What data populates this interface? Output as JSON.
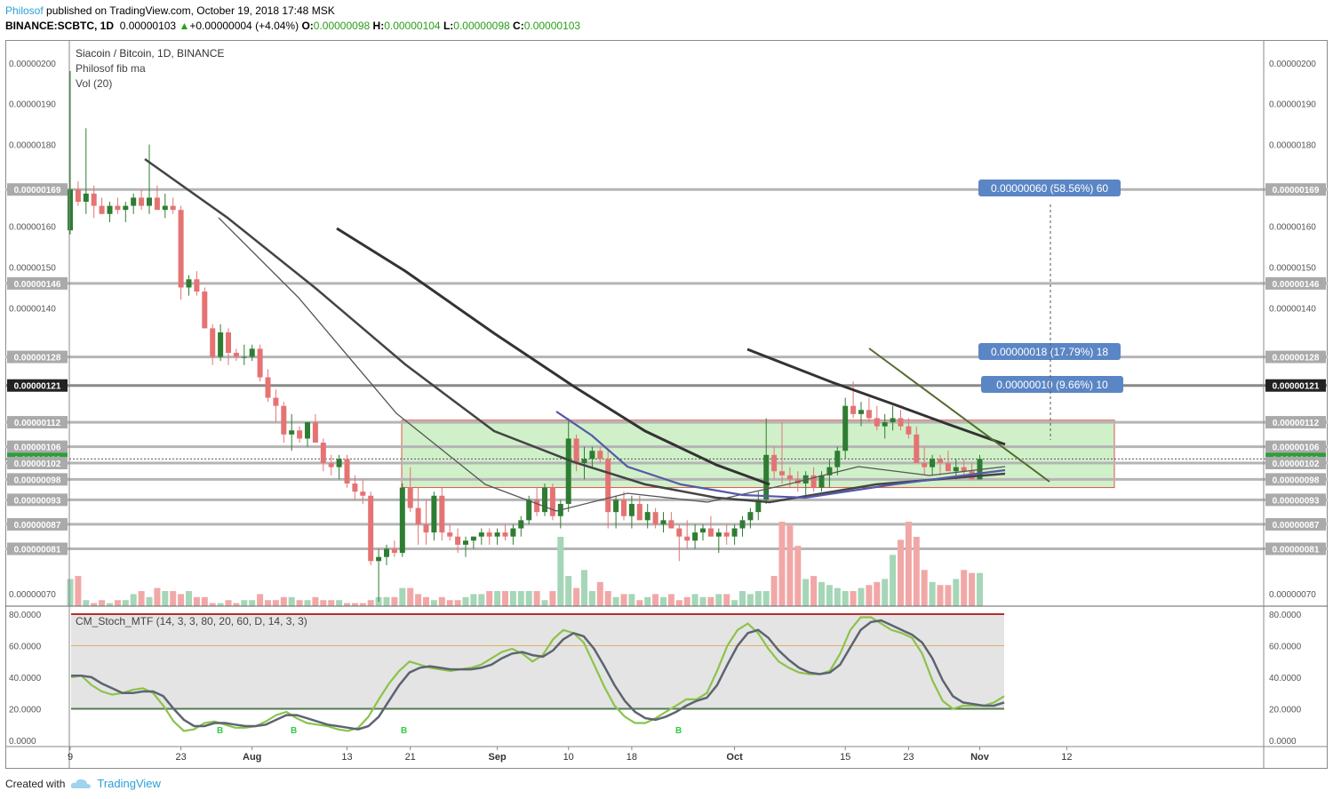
{
  "header": {
    "author": "Philosof",
    "published": "published on TradingView.com, October 19, 2018 17:48 MSK",
    "symbol": "BINANCE:SCBTC, 1D",
    "last": "0.00000103",
    "change_arrow": "▲",
    "change": "+0.00000004 (+4.04%)",
    "o_label": "O:",
    "o": "0.00000098",
    "h_label": "H:",
    "h": "0.00000104",
    "l_label": "L:",
    "l": "0.00000098",
    "c_label": "C:",
    "c": "0.00000103"
  },
  "legend": {
    "title": "Siacoin / Bitcoin, 1D, BINANCE",
    "indicator1": "Philosof fib ma",
    "indicator2": "Vol (20)",
    "oscillator": "CM_Stoch_MTF (14, 3, 3, 80, 20, 60, D, 14, 3, 3)"
  },
  "footer": {
    "created_with": "Created with",
    "brand": "TradingView"
  },
  "colors": {
    "up": "#2e7d32",
    "down": "#e57373",
    "vol_up": "#a5d6b7",
    "vol_down": "#f2a7a7",
    "box": "#c8edc0",
    "box_border": "#d9534f",
    "stoch_k": "#8bc34a",
    "stoch_d": "#5d6470",
    "label_bg": "#5b86c5"
  },
  "chart_data": [
    {
      "type": "candlestick",
      "title": "Siacoin / Bitcoin, 1D, BINANCE",
      "ylim": [
        6.5e-07,
        2.03e-06
      ],
      "price_ticks": [
        "0.00000200",
        "0.00000190",
        "0.00000180",
        "0.00000160",
        "0.00000150",
        "0.00000140",
        "0.00000070"
      ],
      "highlighted_levels": [
        {
          "value": "0.00000169",
          "style": "gray"
        },
        {
          "value": "0.00000146",
          "style": "gray"
        },
        {
          "value": "0.00000128",
          "style": "gray"
        },
        {
          "value": "0.00000121",
          "style": "dark"
        },
        {
          "value": "0.00000112",
          "style": "gray"
        },
        {
          "value": "0.00000106",
          "style": "gray"
        },
        {
          "value": "0.00000103",
          "style": "green"
        },
        {
          "value": "0.00000102",
          "style": "gray"
        },
        {
          "value": "0.00000098",
          "style": "gray"
        },
        {
          "value": "0.00000093",
          "style": "gray"
        },
        {
          "value": "0.00000087",
          "style": "gray"
        },
        {
          "value": "0.00000081",
          "style": "gray"
        }
      ],
      "x_ticks": [
        {
          "label": "9",
          "day": 0
        },
        {
          "label": "23",
          "day": 14
        },
        {
          "label": "Aug",
          "day": 23
        },
        {
          "label": "13",
          "day": 35
        },
        {
          "label": "21",
          "day": 43
        },
        {
          "label": "Sep",
          "day": 54
        },
        {
          "label": "10",
          "day": 63
        },
        {
          "label": "18",
          "day": 71
        },
        {
          "label": "Oct",
          "day": 84
        },
        {
          "label": "15",
          "day": 98
        },
        {
          "label": "23",
          "day": 106
        },
        {
          "label": "Nov",
          "day": 115
        },
        {
          "label": "12",
          "day": 126
        }
      ],
      "candles": [
        [
          1.59,
          1.98,
          1.58,
          1.69
        ],
        [
          1.69,
          1.71,
          1.65,
          1.66
        ],
        [
          1.66,
          1.84,
          1.63,
          1.68
        ],
        [
          1.68,
          1.7,
          1.62,
          1.65
        ],
        [
          1.65,
          1.67,
          1.63,
          1.63
        ],
        [
          1.63,
          1.66,
          1.61,
          1.65
        ],
        [
          1.65,
          1.67,
          1.63,
          1.64
        ],
        [
          1.64,
          1.66,
          1.61,
          1.65
        ],
        [
          1.65,
          1.68,
          1.63,
          1.67
        ],
        [
          1.67,
          1.69,
          1.64,
          1.65
        ],
        [
          1.65,
          1.8,
          1.63,
          1.67
        ],
        [
          1.67,
          1.7,
          1.64,
          1.64
        ],
        [
          1.64,
          1.68,
          1.62,
          1.65
        ],
        [
          1.65,
          1.67,
          1.63,
          1.64
        ],
        [
          1.64,
          1.65,
          1.42,
          1.45
        ],
        [
          1.45,
          1.48,
          1.43,
          1.47
        ],
        [
          1.47,
          1.49,
          1.43,
          1.44
        ],
        [
          1.44,
          1.45,
          1.35,
          1.35
        ],
        [
          1.35,
          1.36,
          1.26,
          1.28
        ],
        [
          1.28,
          1.36,
          1.27,
          1.34
        ],
        [
          1.34,
          1.35,
          1.26,
          1.29
        ],
        [
          1.29,
          1.3,
          1.27,
          1.28
        ],
        [
          1.28,
          1.31,
          1.26,
          1.28
        ],
        [
          1.28,
          1.31,
          1.27,
          1.3
        ],
        [
          1.3,
          1.31,
          1.22,
          1.23
        ],
        [
          1.23,
          1.25,
          1.17,
          1.18
        ],
        [
          1.18,
          1.2,
          1.12,
          1.16
        ],
        [
          1.16,
          1.17,
          1.07,
          1.09
        ],
        [
          1.09,
          1.14,
          1.05,
          1.1
        ],
        [
          1.1,
          1.11,
          1.07,
          1.08
        ],
        [
          1.08,
          1.12,
          1.06,
          1.12
        ],
        [
          1.12,
          1.14,
          1.07,
          1.07
        ],
        [
          1.07,
          1.08,
          1.0,
          1.02
        ],
        [
          1.02,
          1.04,
          0.99,
          1.01
        ],
        [
          1.01,
          1.04,
          0.98,
          1.03
        ],
        [
          1.03,
          1.04,
          0.96,
          0.97
        ],
        [
          0.97,
          0.99,
          0.93,
          0.95
        ],
        [
          0.95,
          0.98,
          0.92,
          0.94
        ],
        [
          0.94,
          0.95,
          0.77,
          0.78
        ],
        [
          0.78,
          0.81,
          0.68,
          0.79
        ],
        [
          0.79,
          0.82,
          0.77,
          0.81
        ],
        [
          0.81,
          0.83,
          0.79,
          0.8
        ],
        [
          0.8,
          0.97,
          0.79,
          0.96
        ],
        [
          0.96,
          1.01,
          0.9,
          0.91
        ],
        [
          0.91,
          0.96,
          0.82,
          0.87
        ],
        [
          0.87,
          0.93,
          0.82,
          0.85
        ],
        [
          0.85,
          0.95,
          0.83,
          0.94
        ],
        [
          0.94,
          0.96,
          0.83,
          0.85
        ],
        [
          0.85,
          0.87,
          0.83,
          0.84
        ],
        [
          0.84,
          0.86,
          0.8,
          0.82
        ],
        [
          0.82,
          0.84,
          0.79,
          0.83
        ],
        [
          0.83,
          0.84,
          0.81,
          0.84
        ],
        [
          0.84,
          0.86,
          0.82,
          0.85
        ],
        [
          0.85,
          0.86,
          0.82,
          0.84
        ],
        [
          0.84,
          0.86,
          0.82,
          0.85
        ],
        [
          0.85,
          0.87,
          0.83,
          0.84
        ],
        [
          0.84,
          0.87,
          0.82,
          0.86
        ],
        [
          0.86,
          0.89,
          0.84,
          0.88
        ],
        [
          0.88,
          0.94,
          0.87,
          0.93
        ],
        [
          0.93,
          0.96,
          0.89,
          0.9
        ],
        [
          0.9,
          0.97,
          0.89,
          0.96
        ],
        [
          0.96,
          0.97,
          0.88,
          0.89
        ],
        [
          0.89,
          0.93,
          0.86,
          0.92
        ],
        [
          0.92,
          1.13,
          0.9,
          1.08
        ],
        [
          1.08,
          1.09,
          1.0,
          1.02
        ],
        [
          1.02,
          1.06,
          0.98,
          1.03
        ],
        [
          1.03,
          1.06,
          1.01,
          1.05
        ],
        [
          1.05,
          1.06,
          1.02,
          1.03
        ],
        [
          1.03,
          1.05,
          0.86,
          0.9
        ],
        [
          0.9,
          0.94,
          0.86,
          0.93
        ],
        [
          0.93,
          0.95,
          0.88,
          0.89
        ],
        [
          0.89,
          0.94,
          0.86,
          0.92
        ],
        [
          0.92,
          0.94,
          0.88,
          0.88
        ],
        [
          0.88,
          0.92,
          0.86,
          0.9
        ],
        [
          0.9,
          0.91,
          0.86,
          0.87
        ],
        [
          0.87,
          0.9,
          0.85,
          0.88
        ],
        [
          0.88,
          0.9,
          0.86,
          0.86
        ],
        [
          0.86,
          0.87,
          0.78,
          0.84
        ],
        [
          0.84,
          0.88,
          0.81,
          0.83
        ],
        [
          0.83,
          0.87,
          0.81,
          0.85
        ],
        [
          0.85,
          0.87,
          0.83,
          0.86
        ],
        [
          0.86,
          0.89,
          0.84,
          0.84
        ],
        [
          0.84,
          0.86,
          0.8,
          0.85
        ],
        [
          0.85,
          0.87,
          0.82,
          0.84
        ],
        [
          0.84,
          0.87,
          0.82,
          0.86
        ],
        [
          0.86,
          0.89,
          0.84,
          0.88
        ],
        [
          0.88,
          0.91,
          0.86,
          0.9
        ],
        [
          0.9,
          0.95,
          0.88,
          0.93
        ],
        [
          0.93,
          1.13,
          0.92,
          1.04
        ],
        [
          1.04,
          1.06,
          0.98,
          1.0
        ],
        [
          1.0,
          1.12,
          0.97,
          0.99
        ],
        [
          0.99,
          1.01,
          0.96,
          0.98
        ],
        [
          0.98,
          1.0,
          0.95,
          0.97
        ],
        [
          0.97,
          1.0,
          0.94,
          0.99
        ],
        [
          0.99,
          1.01,
          0.95,
          0.96
        ],
        [
          0.96,
          1.0,
          0.95,
          0.99
        ],
        [
          0.99,
          1.03,
          0.96,
          1.01
        ],
        [
          1.01,
          1.06,
          0.99,
          1.05
        ],
        [
          1.05,
          1.18,
          1.03,
          1.16
        ],
        [
          1.16,
          1.22,
          1.13,
          1.14
        ],
        [
          1.14,
          1.17,
          1.11,
          1.15
        ],
        [
          1.15,
          1.18,
          1.12,
          1.13
        ],
        [
          1.13,
          1.16,
          1.1,
          1.11
        ],
        [
          1.11,
          1.14,
          1.08,
          1.12
        ],
        [
          1.12,
          1.16,
          1.1,
          1.13
        ],
        [
          1.13,
          1.15,
          1.1,
          1.11
        ],
        [
          1.11,
          1.13,
          1.08,
          1.09
        ],
        [
          1.09,
          1.11,
          1.02,
          1.02
        ],
        [
          1.02,
          1.06,
          0.99,
          1.01
        ],
        [
          1.01,
          1.04,
          0.99,
          1.03
        ],
        [
          1.03,
          1.04,
          0.99,
          1.02
        ],
        [
          1.02,
          1.05,
          1.0,
          1.0
        ],
        [
          1.0,
          1.03,
          0.98,
          1.01
        ],
        [
          1.01,
          1.03,
          0.99,
          1.0
        ],
        [
          1.0,
          1.02,
          0.98,
          0.98
        ],
        [
          0.98,
          1.04,
          0.98,
          1.03
        ]
      ],
      "volume": [
        9,
        10,
        2,
        1,
        2,
        1,
        2,
        2,
        4,
        5,
        3,
        6,
        5,
        5,
        4,
        5,
        3,
        3,
        1,
        1,
        2,
        1,
        2,
        2,
        4,
        2,
        2,
        3,
        3,
        2,
        2,
        3,
        2,
        2,
        2,
        1,
        1,
        1,
        2,
        3,
        3,
        3,
        6,
        6,
        4,
        3,
        2,
        3,
        2,
        2,
        3,
        4,
        4,
        5,
        5,
        5,
        5,
        5,
        5,
        5,
        2,
        5,
        23,
        10,
        6,
        12,
        5,
        8,
        5,
        3,
        4,
        4,
        2,
        3,
        4,
        3,
        4,
        2,
        3,
        4,
        3,
        3,
        4,
        4,
        2,
        5,
        4,
        5,
        5,
        10,
        28,
        27,
        20,
        9,
        10,
        8,
        7,
        6,
        5,
        5,
        6,
        7,
        8,
        9,
        17,
        22,
        28,
        23,
        12,
        8,
        7,
        7,
        9,
        12,
        11,
        11,
        8,
        8,
        7,
        6,
        5
      ]
    },
    {
      "type": "line",
      "title": "CM_Stoch_MTF (14, 3, 3, 80, 20, 60, D, 14, 3, 3)",
      "ylim": [
        0,
        80
      ],
      "y_ticks": [
        "80.0000",
        "60.0000",
        "40.0000",
        "20.0000",
        "0.0000"
      ],
      "levels": [
        80,
        60,
        20
      ],
      "series": [
        {
          "values": [
            40,
            41,
            35,
            31,
            29,
            30,
            32,
            33,
            30,
            22,
            12,
            6,
            7,
            11,
            12,
            10,
            8,
            8,
            9,
            12,
            16,
            18,
            14,
            11,
            10,
            9,
            7,
            6,
            8,
            15,
            26,
            36,
            44,
            50,
            48,
            46,
            45,
            44,
            45,
            46,
            48,
            52,
            56,
            58,
            55,
            50,
            54,
            64,
            70,
            68,
            62,
            48,
            34,
            22,
            15,
            11,
            11,
            14,
            18,
            22,
            26,
            26,
            30,
            44,
            60,
            70,
            74,
            68,
            58,
            50,
            46,
            43,
            42,
            42,
            44,
            55,
            70,
            78,
            78,
            74,
            70,
            68,
            65,
            55,
            38,
            25,
            20,
            22,
            22,
            22,
            24,
            28
          ]
        },
        {
          "values": [
            41,
            41,
            40,
            36,
            33,
            30,
            30,
            31,
            31,
            28,
            20,
            13,
            9,
            9,
            11,
            11,
            10,
            9,
            9,
            10,
            13,
            16,
            16,
            14,
            12,
            10,
            9,
            8,
            7,
            9,
            15,
            25,
            35,
            43,
            46,
            47,
            46,
            45,
            45,
            45,
            46,
            48,
            52,
            55,
            56,
            54,
            53,
            57,
            64,
            68,
            66,
            58,
            47,
            35,
            25,
            18,
            14,
            13,
            15,
            18,
            22,
            25,
            27,
            35,
            48,
            60,
            68,
            70,
            65,
            57,
            51,
            46,
            43,
            42,
            43,
            48,
            59,
            70,
            75,
            76,
            73,
            70,
            67,
            62,
            52,
            38,
            28,
            24,
            23,
            22,
            22,
            24
          ]
        }
      ]
    }
  ],
  "annotations": {
    "measure1": "0.00000060 (58.56%) 60",
    "measure2": "0.00000018 (17.79%) 18",
    "measure3": "0.00000010 (9.66%) 10",
    "b_signal": "B"
  }
}
